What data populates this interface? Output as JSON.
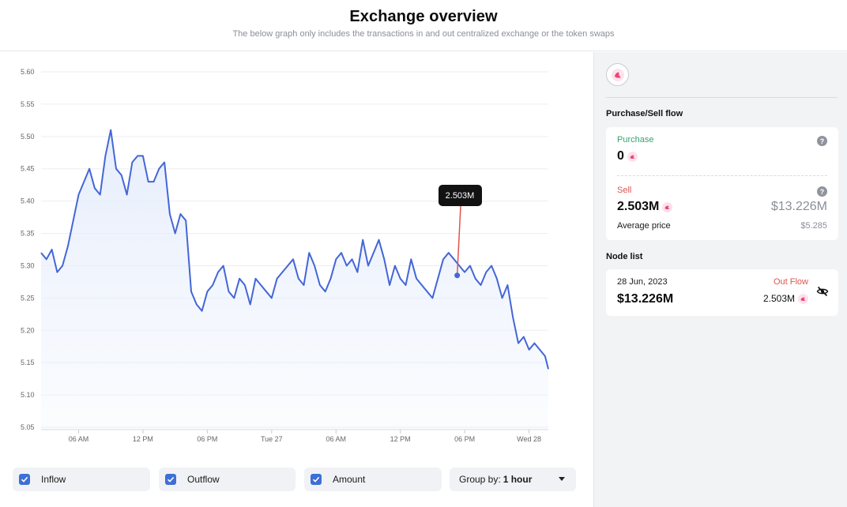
{
  "header": {
    "title": "Exchange overview",
    "subtitle": "The below graph only includes the transactions in and out centralized exchange or the token swaps"
  },
  "chart_data": {
    "type": "area",
    "title": "",
    "xlabel": "",
    "ylabel": "",
    "ylim": [
      5.05,
      5.6
    ],
    "grid": true,
    "y_ticks": [
      "5.60",
      "5.55",
      "5.50",
      "5.45",
      "5.40",
      "5.35",
      "5.30",
      "5.25",
      "5.20",
      "5.15",
      "5.10",
      "5.05"
    ],
    "x_ticks": [
      "06 AM",
      "12 PM",
      "06 PM",
      "Tue 27",
      "06 AM",
      "12 PM",
      "06 PM",
      "Wed 28"
    ],
    "x_hours": [
      6,
      12,
      18,
      24,
      30,
      36,
      42,
      48
    ],
    "x_range_hours": [
      2.5,
      49.8
    ],
    "series": [
      {
        "x": [
          2.5,
          3,
          3.5,
          4,
          4.5,
          5,
          5.5,
          6,
          6.5,
          7,
          7.5,
          8,
          8.5,
          9,
          9.5,
          10,
          10.5,
          11,
          11.5,
          12,
          12.5,
          13,
          13.5,
          14,
          14.5,
          15,
          15.5,
          16,
          16.5,
          17,
          17.5,
          18,
          18.5,
          19,
          19.5,
          20,
          20.5,
          21,
          21.5,
          22,
          22.5,
          23,
          23.5,
          24,
          24.5,
          25,
          25.5,
          26,
          26.5,
          27,
          27.5,
          28,
          28.5,
          29,
          29.5,
          30,
          30.5,
          31,
          31.5,
          32,
          32.5,
          33,
          33.5,
          34,
          34.5,
          35,
          35.5,
          36,
          36.5,
          37,
          37.5,
          38,
          38.5,
          39,
          39.5,
          40,
          40.5,
          41,
          41.5,
          42,
          42.5,
          43,
          43.5,
          44,
          44.5,
          45,
          45.5,
          46,
          46.5,
          47,
          47.5,
          48,
          48.5,
          49,
          49.5,
          49.8
        ],
        "y": [
          5.32,
          5.31,
          5.325,
          5.29,
          5.3,
          5.33,
          5.37,
          5.41,
          5.43,
          5.45,
          5.42,
          5.41,
          5.47,
          5.51,
          5.45,
          5.44,
          5.41,
          5.46,
          5.47,
          5.47,
          5.43,
          5.43,
          5.45,
          5.46,
          5.38,
          5.35,
          5.38,
          5.37,
          5.26,
          5.24,
          5.23,
          5.26,
          5.27,
          5.29,
          5.3,
          5.26,
          5.25,
          5.28,
          5.27,
          5.24,
          5.28,
          5.27,
          5.26,
          5.25,
          5.28,
          5.29,
          5.3,
          5.31,
          5.28,
          5.27,
          5.32,
          5.3,
          5.27,
          5.26,
          5.28,
          5.31,
          5.32,
          5.3,
          5.31,
          5.29,
          5.34,
          5.3,
          5.32,
          5.34,
          5.31,
          5.27,
          5.3,
          5.28,
          5.27,
          5.31,
          5.28,
          5.27,
          5.26,
          5.25,
          5.28,
          5.31,
          5.32,
          5.31,
          5.3,
          5.29,
          5.3,
          5.28,
          5.27,
          5.29,
          5.3,
          5.28,
          5.25,
          5.27,
          5.22,
          5.18,
          5.19,
          5.17,
          5.18,
          5.17,
          5.16,
          5.14
        ]
      }
    ],
    "line_color": "#4466d6",
    "fill_color": "#e7eefc",
    "tooltip": {
      "label": "2.503M",
      "x": 41.3,
      "y": 5.285,
      "line_color": "#e0544c"
    }
  },
  "controls": {
    "inflow_label": "Inflow",
    "outflow_label": "Outflow",
    "amount_label": "Amount",
    "groupby_label": "Group by:",
    "groupby_value": "1 hour"
  },
  "side": {
    "flow_title": "Purchase/Sell flow",
    "purchase_label": "Purchase",
    "purchase_value": "0",
    "sell_label": "Sell",
    "sell_value": "2.503M",
    "sell_usd": "$13.226M",
    "avg_label": "Average price",
    "avg_value": "$5.285",
    "node_title": "Node list",
    "node": {
      "date": "28 Jun, 2023",
      "type": "Out Flow",
      "usd": "$13.226M",
      "amount": "2.503M"
    }
  },
  "colors": {
    "accent": "#3d6fd6",
    "purchase": "#36a36e",
    "sell": "#e0544c",
    "token": "#e8467f"
  },
  "icons": {
    "token": "token-logo-icon",
    "help": "question-icon",
    "hide": "eye-off-icon",
    "check": "check-icon",
    "caret": "caret-down-icon"
  }
}
